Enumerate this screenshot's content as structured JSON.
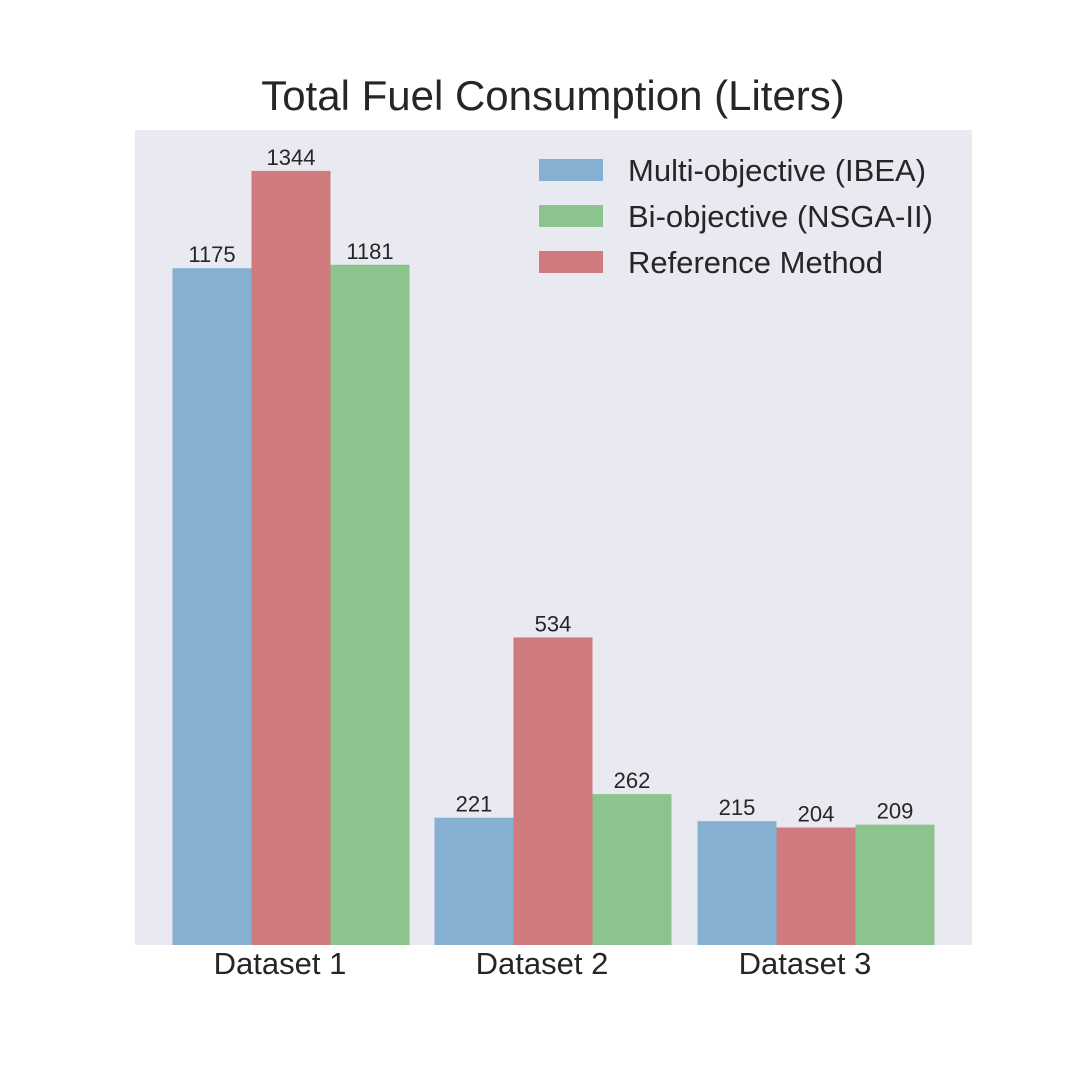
{
  "chart_data": {
    "type": "bar",
    "title": "Total Fuel Consumption (Liters)",
    "xlabel": "",
    "ylabel": "",
    "categories": [
      "Dataset 1",
      "Dataset 2",
      "Dataset 3"
    ],
    "series": [
      {
        "name": "Multi-objective (IBEA)",
        "color": "#86b0d2",
        "values": [
          1175,
          221,
          215
        ]
      },
      {
        "name": "Reference Method",
        "color": "#cf7b7d",
        "values": [
          1344,
          534,
          204
        ]
      },
      {
        "name": "Bi-objective (NSGA-II)",
        "color": "#8bc48d",
        "values": [
          1181,
          262,
          209
        ]
      }
    ],
    "legend": {
      "placement": "top-right",
      "order": [
        "Multi-objective (IBEA)",
        "Bi-objective (NSGA-II)",
        "Reference Method"
      ]
    },
    "ylim": [
      0,
      1415
    ],
    "grid": false,
    "y_axis_visible": false,
    "background": "#e9e9f1"
  }
}
